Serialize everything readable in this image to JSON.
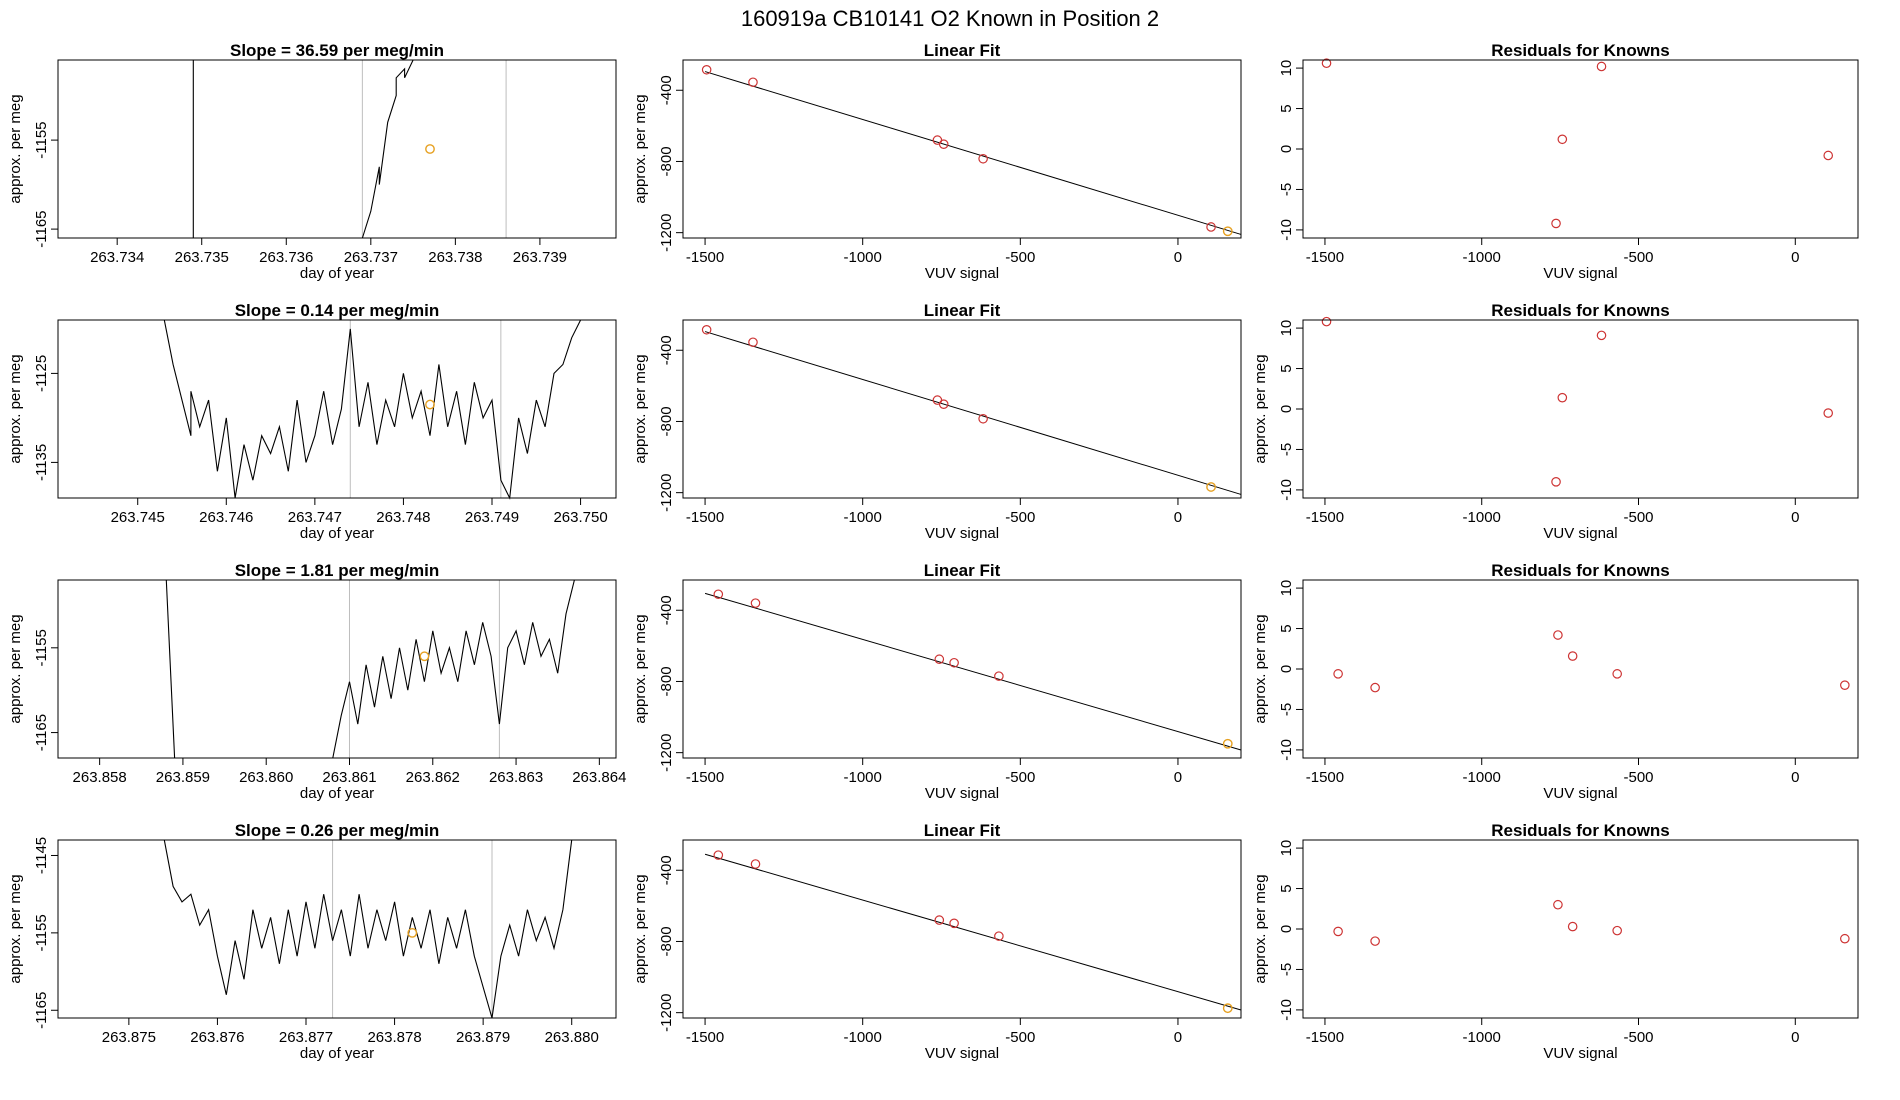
{
  "page_title": "160919a     CB10141    O2 Known in Position  2",
  "colors": {
    "trace": "#000000",
    "gridline": "#bebebe",
    "marker_red": "#cd3333",
    "marker_orange": "#e6a020",
    "fit_line": "#000000"
  },
  "chart_data": [
    {
      "type": "line",
      "row": 0,
      "panel": "trace",
      "title": "Slope =  36.59  per meg/min",
      "xlabel": "day of year",
      "ylabel": "approx. per meg",
      "xlim": [
        263.7333,
        263.7399
      ],
      "ylim": [
        -1166,
        -1146
      ],
      "xticks": [
        "263.734",
        "263.735",
        "263.736",
        "263.737",
        "263.738",
        "263.739"
      ],
      "yticks": [
        "-1155",
        "-1165"
      ],
      "vlines": [
        263.7369,
        263.7386
      ],
      "trace": [
        [
          263.7349,
          -1146
        ],
        [
          263.7349,
          -1166
        ],
        [
          263.7369,
          -1166
        ],
        [
          263.737,
          -1163
        ],
        [
          263.7371,
          -1158
        ],
        [
          263.7371,
          -1160
        ],
        [
          263.7372,
          -1153
        ],
        [
          263.7373,
          -1150
        ],
        [
          263.7373,
          -1148
        ],
        [
          263.7374,
          -1147
        ],
        [
          263.7374,
          -1148
        ],
        [
          263.7375,
          -1146
        ]
      ],
      "point": [
        263.7377,
        -1156
      ]
    },
    {
      "type": "scatter",
      "row": 0,
      "panel": "fit",
      "title": "Linear Fit",
      "xlabel": "VUV signal",
      "ylabel": "approx. per meg",
      "xlim": [
        -1570,
        200
      ],
      "ylim": [
        -1230,
        -230
      ],
      "xticks": [
        -1500,
        -1000,
        -500,
        0
      ],
      "yticks": [
        -400,
        -800,
        -1200
      ],
      "fit": [
        [
          -1500,
          -295
        ],
        [
          200,
          -1210
        ]
      ],
      "points": [
        [
          -1495,
          -285
        ],
        [
          -1348,
          -355
        ],
        [
          -763,
          -680
        ],
        [
          -743,
          -703
        ],
        [
          -618,
          -785
        ],
        [
          105,
          -1168
        ]
      ],
      "highlight": [
        158,
        -1192
      ]
    },
    {
      "type": "scatter",
      "row": 0,
      "panel": "resid",
      "title": "Residuals for Knowns",
      "xlabel": "VUV signal",
      "ylabel": "",
      "xlim": [
        -1570,
        200
      ],
      "ylim": [
        -11,
        11
      ],
      "xticks": [
        -1500,
        -1000,
        -500,
        0
      ],
      "yticks": [
        10,
        5,
        0,
        -5,
        -10
      ],
      "points": [
        [
          -1495,
          10.6
        ],
        [
          -763,
          -9.2
        ],
        [
          -743,
          1.2
        ],
        [
          -618,
          10.2
        ],
        [
          105,
          -0.8
        ]
      ]
    },
    {
      "type": "line",
      "row": 1,
      "panel": "trace",
      "title": "Slope =  0.14  per meg/min",
      "xlabel": "day of year",
      "ylabel": "approx. per meg",
      "xlim": [
        263.7441,
        263.7504
      ],
      "ylim": [
        -1139,
        -1119
      ],
      "xticks": [
        "263.745",
        "263.746",
        "263.747",
        "263.748",
        "263.749",
        "263.750"
      ],
      "yticks": [
        "-1125",
        "-1135"
      ],
      "vlines": [
        263.7474,
        263.7491
      ],
      "trace": [
        [
          263.7453,
          -1119
        ],
        [
          263.7454,
          -1124
        ],
        [
          263.7455,
          -1128
        ],
        [
          263.7456,
          -1132
        ],
        [
          263.7456,
          -1127
        ],
        [
          263.7457,
          -1131
        ],
        [
          263.7458,
          -1128
        ],
        [
          263.7459,
          -1136
        ],
        [
          263.746,
          -1130
        ],
        [
          263.7461,
          -1139
        ],
        [
          263.7462,
          -1133
        ],
        [
          263.7463,
          -1137
        ],
        [
          263.7464,
          -1132
        ],
        [
          263.7465,
          -1134
        ],
        [
          263.7466,
          -1131
        ],
        [
          263.7467,
          -1136
        ],
        [
          263.7468,
          -1128
        ],
        [
          263.7469,
          -1135
        ],
        [
          263.747,
          -1132
        ],
        [
          263.7471,
          -1127
        ],
        [
          263.7472,
          -1133
        ],
        [
          263.7473,
          -1129
        ],
        [
          263.7474,
          -1120
        ],
        [
          263.7475,
          -1131
        ],
        [
          263.7476,
          -1126
        ],
        [
          263.7477,
          -1133
        ],
        [
          263.7478,
          -1128
        ],
        [
          263.7479,
          -1131
        ],
        [
          263.748,
          -1125
        ],
        [
          263.7481,
          -1130
        ],
        [
          263.7482,
          -1127
        ],
        [
          263.7483,
          -1132
        ],
        [
          263.7484,
          -1124
        ],
        [
          263.7485,
          -1131
        ],
        [
          263.7486,
          -1127
        ],
        [
          263.7487,
          -1133
        ],
        [
          263.7488,
          -1126
        ],
        [
          263.7489,
          -1130
        ],
        [
          263.749,
          -1128
        ],
        [
          263.7491,
          -1137
        ],
        [
          263.7492,
          -1139
        ],
        [
          263.7493,
          -1130
        ],
        [
          263.7494,
          -1134
        ],
        [
          263.7495,
          -1128
        ],
        [
          263.7496,
          -1131
        ],
        [
          263.7497,
          -1125
        ],
        [
          263.7498,
          -1124
        ],
        [
          263.7499,
          -1121
        ],
        [
          263.75,
          -1119
        ]
      ],
      "point": [
        263.7483,
        -1128.5
      ]
    },
    {
      "type": "scatter",
      "row": 1,
      "panel": "fit",
      "title": "Linear Fit",
      "xlabel": "VUV signal",
      "ylabel": "approx. per meg",
      "xlim": [
        -1570,
        200
      ],
      "ylim": [
        -1230,
        -230
      ],
      "xticks": [
        -1500,
        -1000,
        -500,
        0
      ],
      "yticks": [
        -400,
        -800,
        -1200
      ],
      "fit": [
        [
          -1500,
          -295
        ],
        [
          200,
          -1210
        ]
      ],
      "points": [
        [
          -1495,
          -285
        ],
        [
          -1348,
          -355
        ],
        [
          -763,
          -680
        ],
        [
          -743,
          -703
        ],
        [
          -618,
          -785
        ]
      ],
      "highlight": [
        105,
        -1168
      ]
    },
    {
      "type": "scatter",
      "row": 1,
      "panel": "resid",
      "title": "Residuals for Knowns",
      "xlabel": "VUV signal",
      "ylabel": "approx. per meg",
      "xlim": [
        -1570,
        200
      ],
      "ylim": [
        -11,
        11
      ],
      "xticks": [
        -1500,
        -1000,
        -500,
        0
      ],
      "yticks": [
        10,
        5,
        0,
        -5,
        -10
      ],
      "points": [
        [
          -1495,
          10.8
        ],
        [
          -763,
          -9.0
        ],
        [
          -743,
          1.4
        ],
        [
          -618,
          9.1
        ],
        [
          105,
          -0.5
        ]
      ]
    },
    {
      "type": "line",
      "row": 2,
      "panel": "trace",
      "title": "Slope =  1.81  per meg/min",
      "xlabel": "day of year",
      "ylabel": "approx. per meg",
      "xlim": [
        263.8575,
        263.8642
      ],
      "ylim": [
        -1168,
        -1147
      ],
      "xticks": [
        "263.858",
        "263.859",
        "263.860",
        "263.861",
        "263.862",
        "263.863",
        "263.864"
      ],
      "yticks": [
        "-1155",
        "-1165"
      ],
      "vlines": [
        263.861,
        263.8628
      ],
      "trace": [
        [
          263.8588,
          -1147
        ],
        [
          263.8589,
          -1168
        ],
        [
          263.8608,
          -1168
        ],
        [
          263.8609,
          -1163
        ],
        [
          263.861,
          -1159
        ],
        [
          263.8611,
          -1164
        ],
        [
          263.8612,
          -1157
        ],
        [
          263.8613,
          -1162
        ],
        [
          263.8614,
          -1156
        ],
        [
          263.8615,
          -1161
        ],
        [
          263.8616,
          -1155
        ],
        [
          263.8617,
          -1160
        ],
        [
          263.8618,
          -1154
        ],
        [
          263.8619,
          -1159
        ],
        [
          263.862,
          -1153
        ],
        [
          263.8621,
          -1158
        ],
        [
          263.8622,
          -1155
        ],
        [
          263.8623,
          -1159
        ],
        [
          263.8624,
          -1153
        ],
        [
          263.8625,
          -1157
        ],
        [
          263.8626,
          -1152
        ],
        [
          263.8627,
          -1156
        ],
        [
          263.8628,
          -1164
        ],
        [
          263.8629,
          -1155
        ],
        [
          263.863,
          -1153
        ],
        [
          263.8631,
          -1157
        ],
        [
          263.8632,
          -1152
        ],
        [
          263.8633,
          -1156
        ],
        [
          263.8634,
          -1154
        ],
        [
          263.8635,
          -1158
        ],
        [
          263.8636,
          -1151
        ],
        [
          263.8637,
          -1147
        ]
      ],
      "point": [
        263.8619,
        -1156
      ]
    },
    {
      "type": "scatter",
      "row": 2,
      "panel": "fit",
      "title": "Linear Fit",
      "xlabel": "VUV signal",
      "ylabel": "approx. per meg",
      "xlim": [
        -1570,
        200
      ],
      "ylim": [
        -1230,
        -230
      ],
      "xticks": [
        -1500,
        -1000,
        -500,
        0
      ],
      "yticks": [
        -400,
        -800,
        -1200
      ],
      "fit": [
        [
          -1500,
          -305
        ],
        [
          200,
          -1185
        ]
      ],
      "points": [
        [
          -1458,
          -310
        ],
        [
          -1340,
          -360
        ],
        [
          -757,
          -675
        ],
        [
          -710,
          -695
        ],
        [
          -568,
          -770
        ]
      ],
      "highlight": [
        158,
        -1150
      ]
    },
    {
      "type": "scatter",
      "row": 2,
      "panel": "resid",
      "title": "Residuals for Knowns",
      "xlabel": "VUV signal",
      "ylabel": "approx. per meg",
      "xlim": [
        -1570,
        200
      ],
      "ylim": [
        -11,
        11
      ],
      "xticks": [
        -1500,
        -1000,
        -500,
        0
      ],
      "yticks": [
        10,
        5,
        0,
        -5,
        -10
      ],
      "points": [
        [
          -1458,
          -0.6
        ],
        [
          -1340,
          -2.3
        ],
        [
          -757,
          4.2
        ],
        [
          -710,
          1.6
        ],
        [
          -568,
          -0.6
        ],
        [
          158,
          -2.0
        ]
      ]
    },
    {
      "type": "line",
      "row": 3,
      "panel": "trace",
      "title": "Slope =  0.26  per meg/min",
      "xlabel": "day of year",
      "ylabel": "approx. per meg",
      "xlim": [
        263.8742,
        263.8805
      ],
      "ylim": [
        -1166,
        -1143
      ],
      "xticks": [
        "263.875",
        "263.876",
        "263.877",
        "263.878",
        "263.879",
        "263.880"
      ],
      "yticks": [
        "-1145",
        "-1155",
        "-1165"
      ],
      "vlines": [
        263.8773,
        263.8791
      ],
      "trace": [
        [
          263.8754,
          -1143
        ],
        [
          263.8755,
          -1149
        ],
        [
          263.8756,
          -1151
        ],
        [
          263.8757,
          -1150
        ],
        [
          263.8758,
          -1154
        ],
        [
          263.8759,
          -1152
        ],
        [
          263.876,
          -1158
        ],
        [
          263.8761,
          -1163
        ],
        [
          263.8762,
          -1156
        ],
        [
          263.8763,
          -1161
        ],
        [
          263.8764,
          -1152
        ],
        [
          263.8765,
          -1157
        ],
        [
          263.8766,
          -1153
        ],
        [
          263.8767,
          -1159
        ],
        [
          263.8768,
          -1152
        ],
        [
          263.8769,
          -1158
        ],
        [
          263.877,
          -1151
        ],
        [
          263.8771,
          -1157
        ],
        [
          263.8772,
          -1150
        ],
        [
          263.8773,
          -1156
        ],
        [
          263.8774,
          -1152
        ],
        [
          263.8775,
          -1158
        ],
        [
          263.8776,
          -1150
        ],
        [
          263.8777,
          -1157
        ],
        [
          263.8778,
          -1152
        ],
        [
          263.8779,
          -1156
        ],
        [
          263.878,
          -1151
        ],
        [
          263.8781,
          -1158
        ],
        [
          263.8782,
          -1153
        ],
        [
          263.8783,
          -1157
        ],
        [
          263.8784,
          -1152
        ],
        [
          263.8785,
          -1159
        ],
        [
          263.8786,
          -1153
        ],
        [
          263.8787,
          -1157
        ],
        [
          263.8788,
          -1152
        ],
        [
          263.8789,
          -1158
        ],
        [
          263.879,
          -1162
        ],
        [
          263.8791,
          -1166
        ],
        [
          263.8792,
          -1158
        ],
        [
          263.8793,
          -1154
        ],
        [
          263.8794,
          -1158
        ],
        [
          263.8795,
          -1152
        ],
        [
          263.8796,
          -1156
        ],
        [
          263.8797,
          -1153
        ],
        [
          263.8798,
          -1157
        ],
        [
          263.8799,
          -1152
        ],
        [
          263.88,
          -1143
        ]
      ],
      "point": [
        263.8782,
        -1155
      ]
    },
    {
      "type": "scatter",
      "row": 3,
      "panel": "fit",
      "title": "Linear Fit",
      "xlabel": "VUV signal",
      "ylabel": "approx. per meg",
      "xlim": [
        -1570,
        200
      ],
      "ylim": [
        -1230,
        -230
      ],
      "xticks": [
        -1500,
        -1000,
        -500,
        0
      ],
      "yticks": [
        -400,
        -800,
        -1200
      ],
      "fit": [
        [
          -1500,
          -310
        ],
        [
          200,
          -1185
        ]
      ],
      "points": [
        [
          -1458,
          -315
        ],
        [
          -1340,
          -365
        ],
        [
          -757,
          -680
        ],
        [
          -710,
          -698
        ],
        [
          -568,
          -770
        ]
      ],
      "highlight": [
        158,
        -1175
      ]
    },
    {
      "type": "scatter",
      "row": 3,
      "panel": "resid",
      "title": "Residuals for Knowns",
      "xlabel": "VUV signal",
      "ylabel": "approx. per meg",
      "xlim": [
        -1570,
        200
      ],
      "ylim": [
        -11,
        11
      ],
      "xticks": [
        -1500,
        -1000,
        -500,
        0
      ],
      "yticks": [
        10,
        5,
        0,
        -5,
        -10
      ],
      "points": [
        [
          -1458,
          -0.3
        ],
        [
          -1340,
          -1.5
        ],
        [
          -757,
          3.0
        ],
        [
          -710,
          0.3
        ],
        [
          -568,
          -0.2
        ],
        [
          158,
          -1.2
        ]
      ]
    }
  ]
}
